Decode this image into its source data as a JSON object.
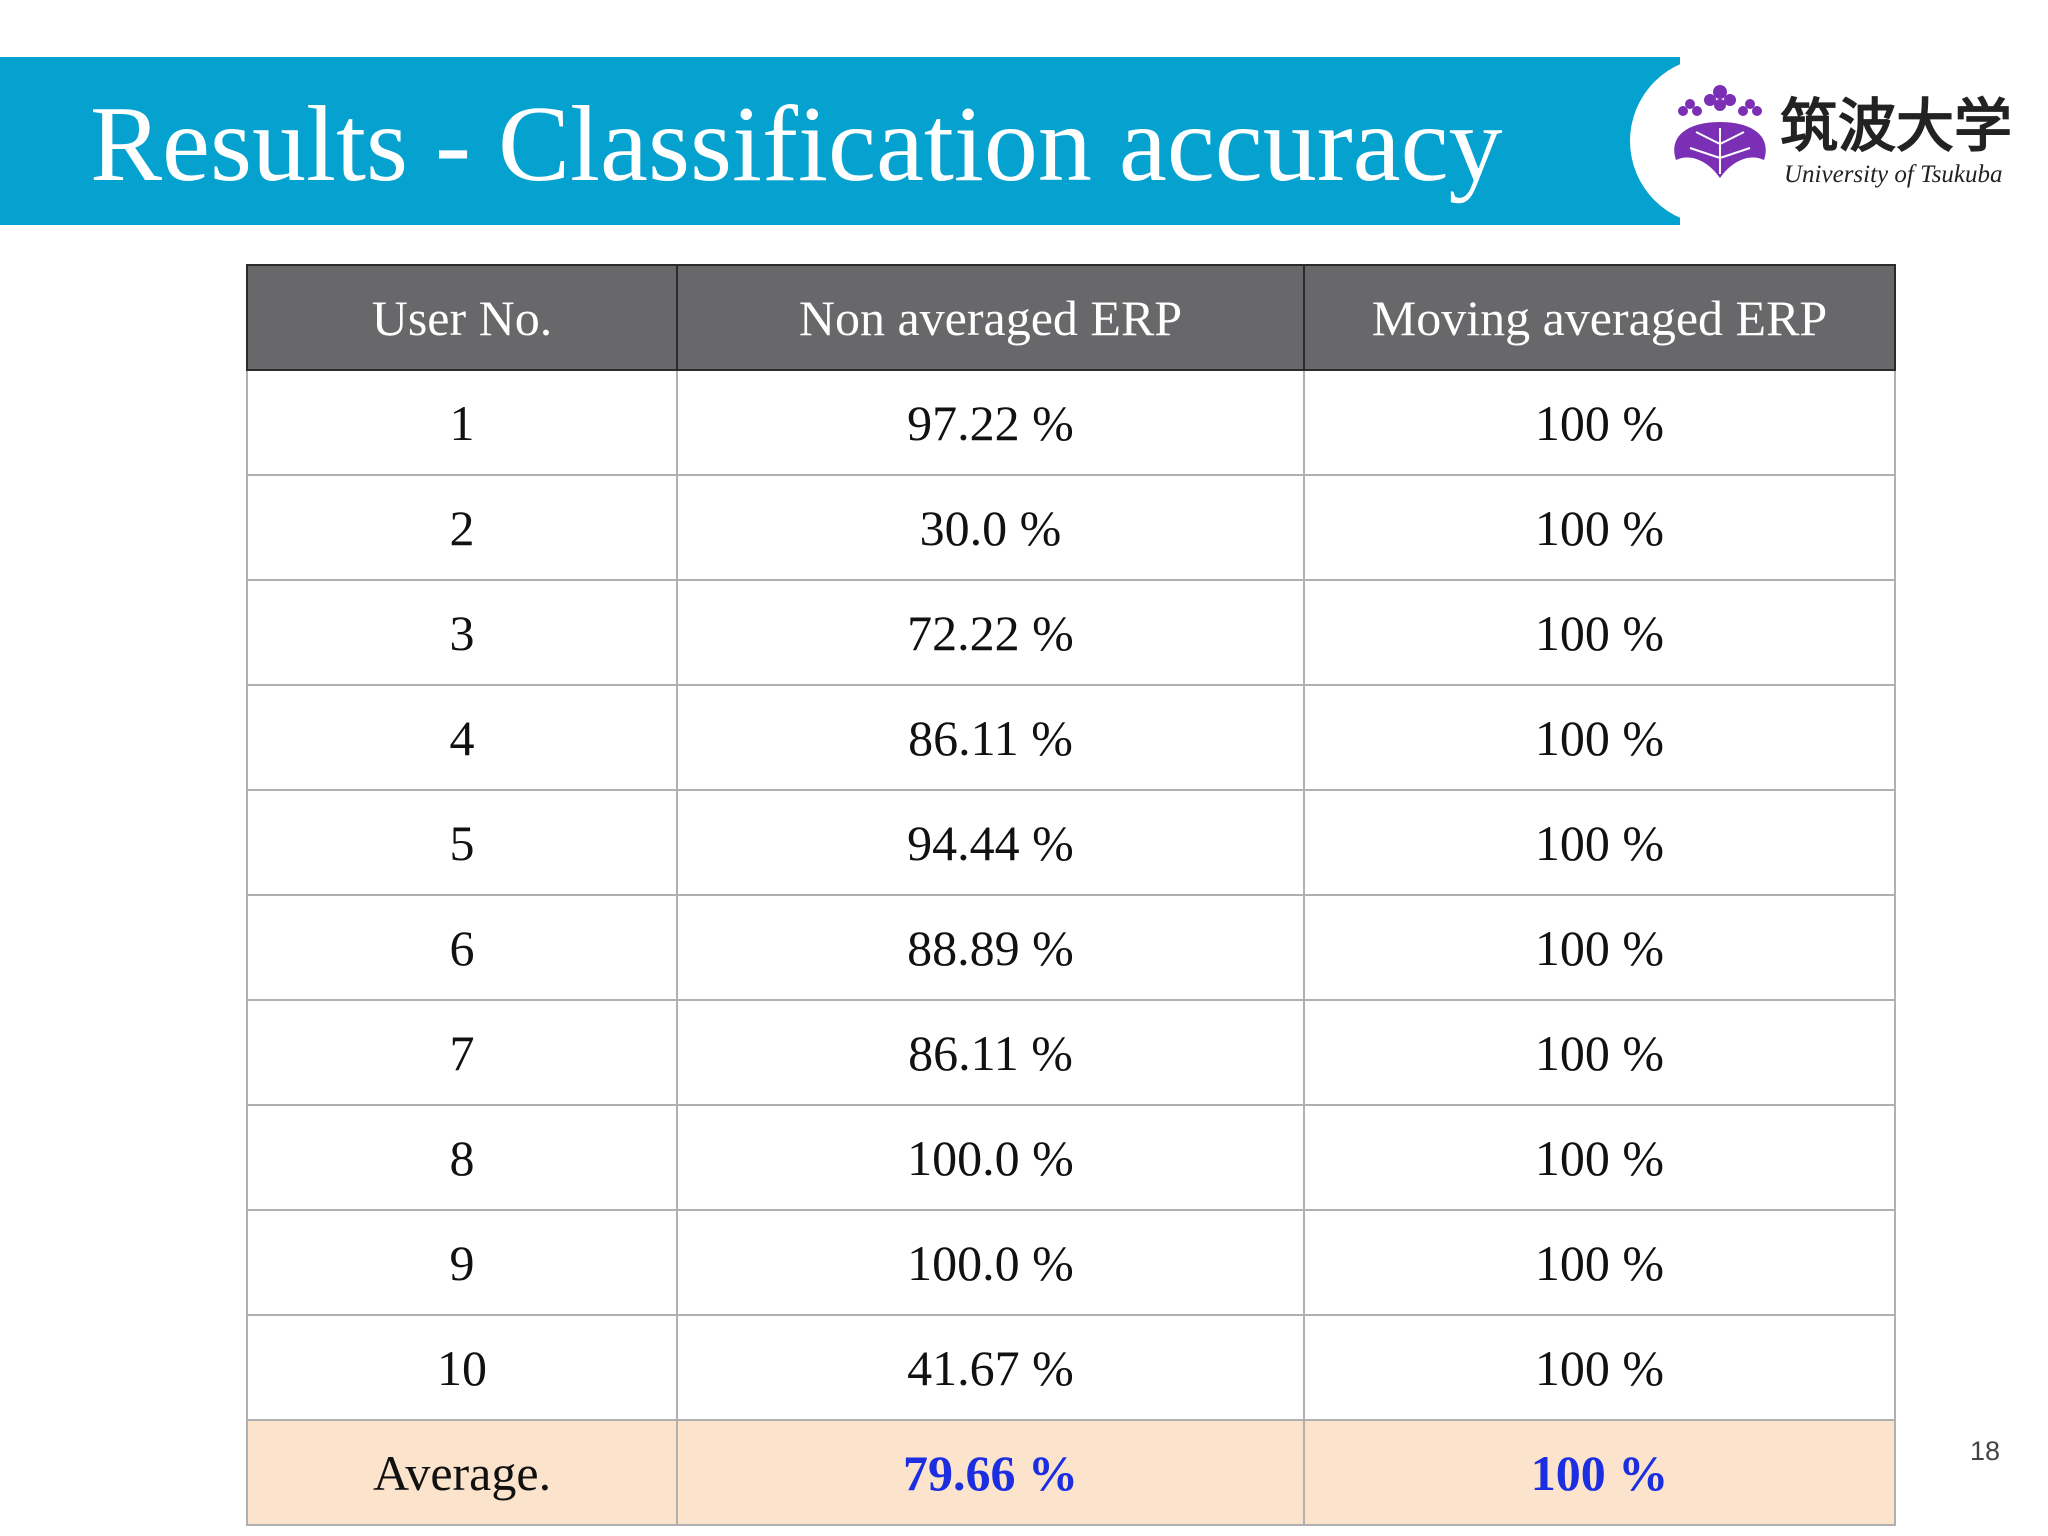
{
  "slide": {
    "title": "Results - Classification accuracy",
    "page_number": "18"
  },
  "logo": {
    "name_ja": "筑波大学",
    "name_en": "University of Tsukuba",
    "emblem_icon": "paulownia-crest-icon",
    "color": "#7a2fb5"
  },
  "colors": {
    "header_bar": "#05a1cf",
    "table_header": "#68676a",
    "average_row": "#fce3cc",
    "average_value": "#1b2fe0"
  },
  "table": {
    "headers": [
      "User No.",
      "Non averaged ERP",
      "Moving averaged ERP"
    ],
    "rows": [
      [
        "1",
        "97.22 %",
        "100 %"
      ],
      [
        "2",
        "30.0 %",
        "100 %"
      ],
      [
        "3",
        "72.22 %",
        "100 %"
      ],
      [
        "4",
        "86.11 %",
        "100 %"
      ],
      [
        "5",
        "94.44 %",
        "100 %"
      ],
      [
        "6",
        "88.89 %",
        "100 %"
      ],
      [
        "7",
        "86.11 %",
        "100 %"
      ],
      [
        "8",
        "100.0 %",
        "100 %"
      ],
      [
        "9",
        "100.0 %",
        "100 %"
      ],
      [
        "10",
        "41.67 %",
        "100 %"
      ]
    ],
    "average": [
      "Average.",
      "79.66 %",
      "100 %"
    ]
  }
}
